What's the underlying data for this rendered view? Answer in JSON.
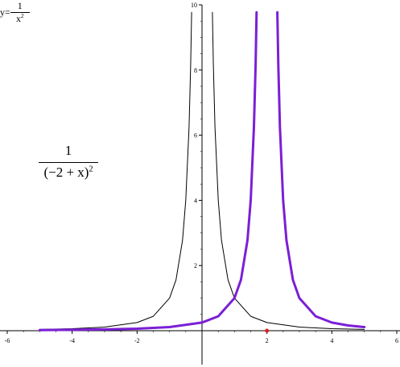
{
  "chart_data": {
    "type": "line",
    "xlim": [
      -6,
      6
    ],
    "ylim": [
      0,
      10
    ],
    "x_ticks": [
      "-6",
      "-4",
      "-2",
      "2",
      "4",
      "6"
    ],
    "y_ticks": [
      "2",
      "4",
      "6",
      "8",
      "10"
    ],
    "grid": false,
    "series": [
      {
        "expression": "1/x^2",
        "color": "#000000",
        "x": [
          -5,
          -4,
          -3,
          -2,
          -1.5,
          -1,
          -0.8,
          -0.6,
          -0.5,
          -0.4,
          -0.35,
          -0.32,
          0.32,
          0.35,
          0.4,
          0.5,
          0.6,
          0.8,
          1,
          1.5,
          2,
          3,
          4,
          5
        ],
        "y": [
          0.04,
          0.0625,
          0.111,
          0.25,
          0.444,
          1,
          1.5625,
          2.778,
          4,
          6.25,
          8.16,
          9.77,
          9.77,
          8.16,
          6.25,
          4,
          2.778,
          1.5625,
          1,
          0.444,
          0.25,
          0.111,
          0.0625,
          0.04
        ]
      },
      {
        "expression": "1/(-2+x)^2",
        "color": "#7b1fd6",
        "x": [
          -5,
          -4,
          -3,
          -2,
          -1,
          0,
          0.5,
          1,
          1.2,
          1.4,
          1.5,
          1.6,
          1.65,
          1.68,
          2.32,
          2.35,
          2.4,
          2.5,
          2.6,
          2.8,
          3,
          3.5,
          4,
          4.5,
          5
        ],
        "y": [
          0.0204,
          0.0278,
          0.04,
          0.0625,
          0.111,
          0.25,
          0.444,
          1,
          1.5625,
          2.778,
          4,
          6.25,
          8.16,
          9.77,
          9.77,
          8.16,
          6.25,
          4,
          2.778,
          1.5625,
          1,
          0.444,
          0.25,
          0.16,
          0.111
        ]
      }
    ],
    "marker": {
      "x": 2,
      "y": 0,
      "color": "#e02020"
    },
    "labels": {
      "left_num": "1",
      "left_den_main": "(−2 + x)",
      "left_den_exp": "2",
      "right_prefix": "y=",
      "right_num": "1",
      "right_den_main": "x",
      "right_den_exp": "2"
    }
  }
}
